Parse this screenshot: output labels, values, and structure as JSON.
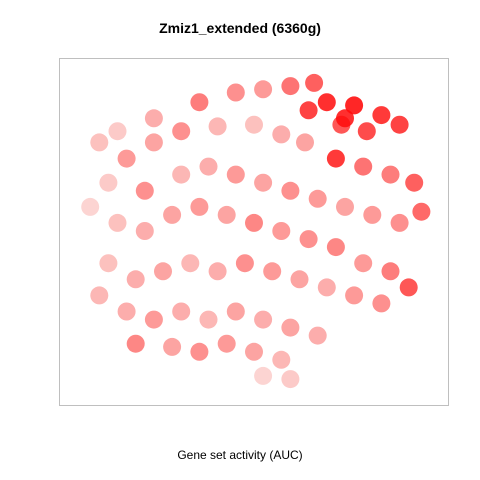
{
  "chart_data": {
    "type": "scatter",
    "title": "Zmiz1_extended (6360g)",
    "xlabel": "Gene set activity (AUC)",
    "ylabel": "",
    "grid": false,
    "legend": "none",
    "color_scale": {
      "low": "#fbe3e0",
      "high": "#ff0000",
      "variable": "AUC"
    },
    "series": [
      {
        "points": [
          [
            -0.3,
            0.8,
            0.55
          ],
          [
            -0.1,
            0.86,
            0.45
          ],
          [
            0.05,
            0.88,
            0.4
          ],
          [
            0.2,
            0.9,
            0.6
          ],
          [
            0.33,
            0.92,
            0.7
          ],
          [
            0.4,
            0.8,
            0.95
          ],
          [
            0.55,
            0.78,
            1.0
          ],
          [
            0.7,
            0.72,
            0.9
          ],
          [
            0.8,
            0.66,
            0.85
          ],
          [
            0.62,
            0.62,
            0.8
          ],
          [
            0.48,
            0.66,
            0.75
          ],
          [
            -0.55,
            0.7,
            0.3
          ],
          [
            -0.75,
            0.62,
            0.15
          ],
          [
            -0.85,
            0.55,
            0.2
          ],
          [
            -0.7,
            0.45,
            0.4
          ],
          [
            -0.55,
            0.55,
            0.35
          ],
          [
            -0.4,
            0.62,
            0.45
          ],
          [
            -0.2,
            0.65,
            0.25
          ],
          [
            0.0,
            0.66,
            0.2
          ],
          [
            0.15,
            0.6,
            0.3
          ],
          [
            0.28,
            0.55,
            0.35
          ],
          [
            0.45,
            0.45,
            0.9
          ],
          [
            0.6,
            0.4,
            0.6
          ],
          [
            0.75,
            0.35,
            0.55
          ],
          [
            0.88,
            0.3,
            0.7
          ],
          [
            0.92,
            0.12,
            0.65
          ],
          [
            0.8,
            0.05,
            0.45
          ],
          [
            0.65,
            0.1,
            0.4
          ],
          [
            0.5,
            0.15,
            0.35
          ],
          [
            0.35,
            0.2,
            0.4
          ],
          [
            0.2,
            0.25,
            0.45
          ],
          [
            0.05,
            0.3,
            0.35
          ],
          [
            -0.1,
            0.35,
            0.4
          ],
          [
            -0.25,
            0.4,
            0.3
          ],
          [
            -0.4,
            0.35,
            0.25
          ],
          [
            -0.6,
            0.25,
            0.45
          ],
          [
            -0.8,
            0.3,
            0.15
          ],
          [
            -0.9,
            0.15,
            0.1
          ],
          [
            -0.75,
            0.05,
            0.2
          ],
          [
            -0.6,
            0.0,
            0.3
          ],
          [
            -0.45,
            0.1,
            0.35
          ],
          [
            -0.3,
            0.15,
            0.4
          ],
          [
            -0.15,
            0.1,
            0.35
          ],
          [
            0.0,
            0.05,
            0.5
          ],
          [
            0.15,
            0.0,
            0.4
          ],
          [
            0.3,
            -0.05,
            0.45
          ],
          [
            0.45,
            -0.1,
            0.5
          ],
          [
            0.6,
            -0.2,
            0.4
          ],
          [
            0.75,
            -0.25,
            0.55
          ],
          [
            0.85,
            -0.35,
            0.75
          ],
          [
            0.7,
            -0.45,
            0.45
          ],
          [
            0.55,
            -0.4,
            0.4
          ],
          [
            0.4,
            -0.35,
            0.3
          ],
          [
            0.25,
            -0.3,
            0.35
          ],
          [
            0.1,
            -0.25,
            0.4
          ],
          [
            -0.05,
            -0.2,
            0.45
          ],
          [
            -0.2,
            -0.25,
            0.3
          ],
          [
            -0.35,
            -0.2,
            0.25
          ],
          [
            -0.5,
            -0.25,
            0.35
          ],
          [
            -0.65,
            -0.3,
            0.3
          ],
          [
            -0.8,
            -0.2,
            0.2
          ],
          [
            -0.85,
            -0.4,
            0.25
          ],
          [
            -0.7,
            -0.5,
            0.3
          ],
          [
            -0.55,
            -0.55,
            0.4
          ],
          [
            -0.4,
            -0.5,
            0.3
          ],
          [
            -0.25,
            -0.55,
            0.25
          ],
          [
            -0.1,
            -0.5,
            0.35
          ],
          [
            0.05,
            -0.55,
            0.3
          ],
          [
            0.2,
            -0.6,
            0.35
          ],
          [
            0.35,
            -0.65,
            0.3
          ],
          [
            0.15,
            -0.8,
            0.25
          ],
          [
            0.0,
            -0.75,
            0.35
          ],
          [
            -0.15,
            -0.7,
            0.4
          ],
          [
            -0.3,
            -0.75,
            0.45
          ],
          [
            -0.45,
            -0.72,
            0.35
          ],
          [
            0.05,
            -0.9,
            0.1
          ],
          [
            0.2,
            -0.92,
            0.15
          ],
          [
            -0.65,
            -0.7,
            0.5
          ],
          [
            0.3,
            0.75,
            0.85
          ],
          [
            0.5,
            0.7,
            0.95
          ]
        ]
      }
    ],
    "xlim": [
      -1,
      1
    ],
    "ylim": [
      -1,
      1
    ]
  }
}
